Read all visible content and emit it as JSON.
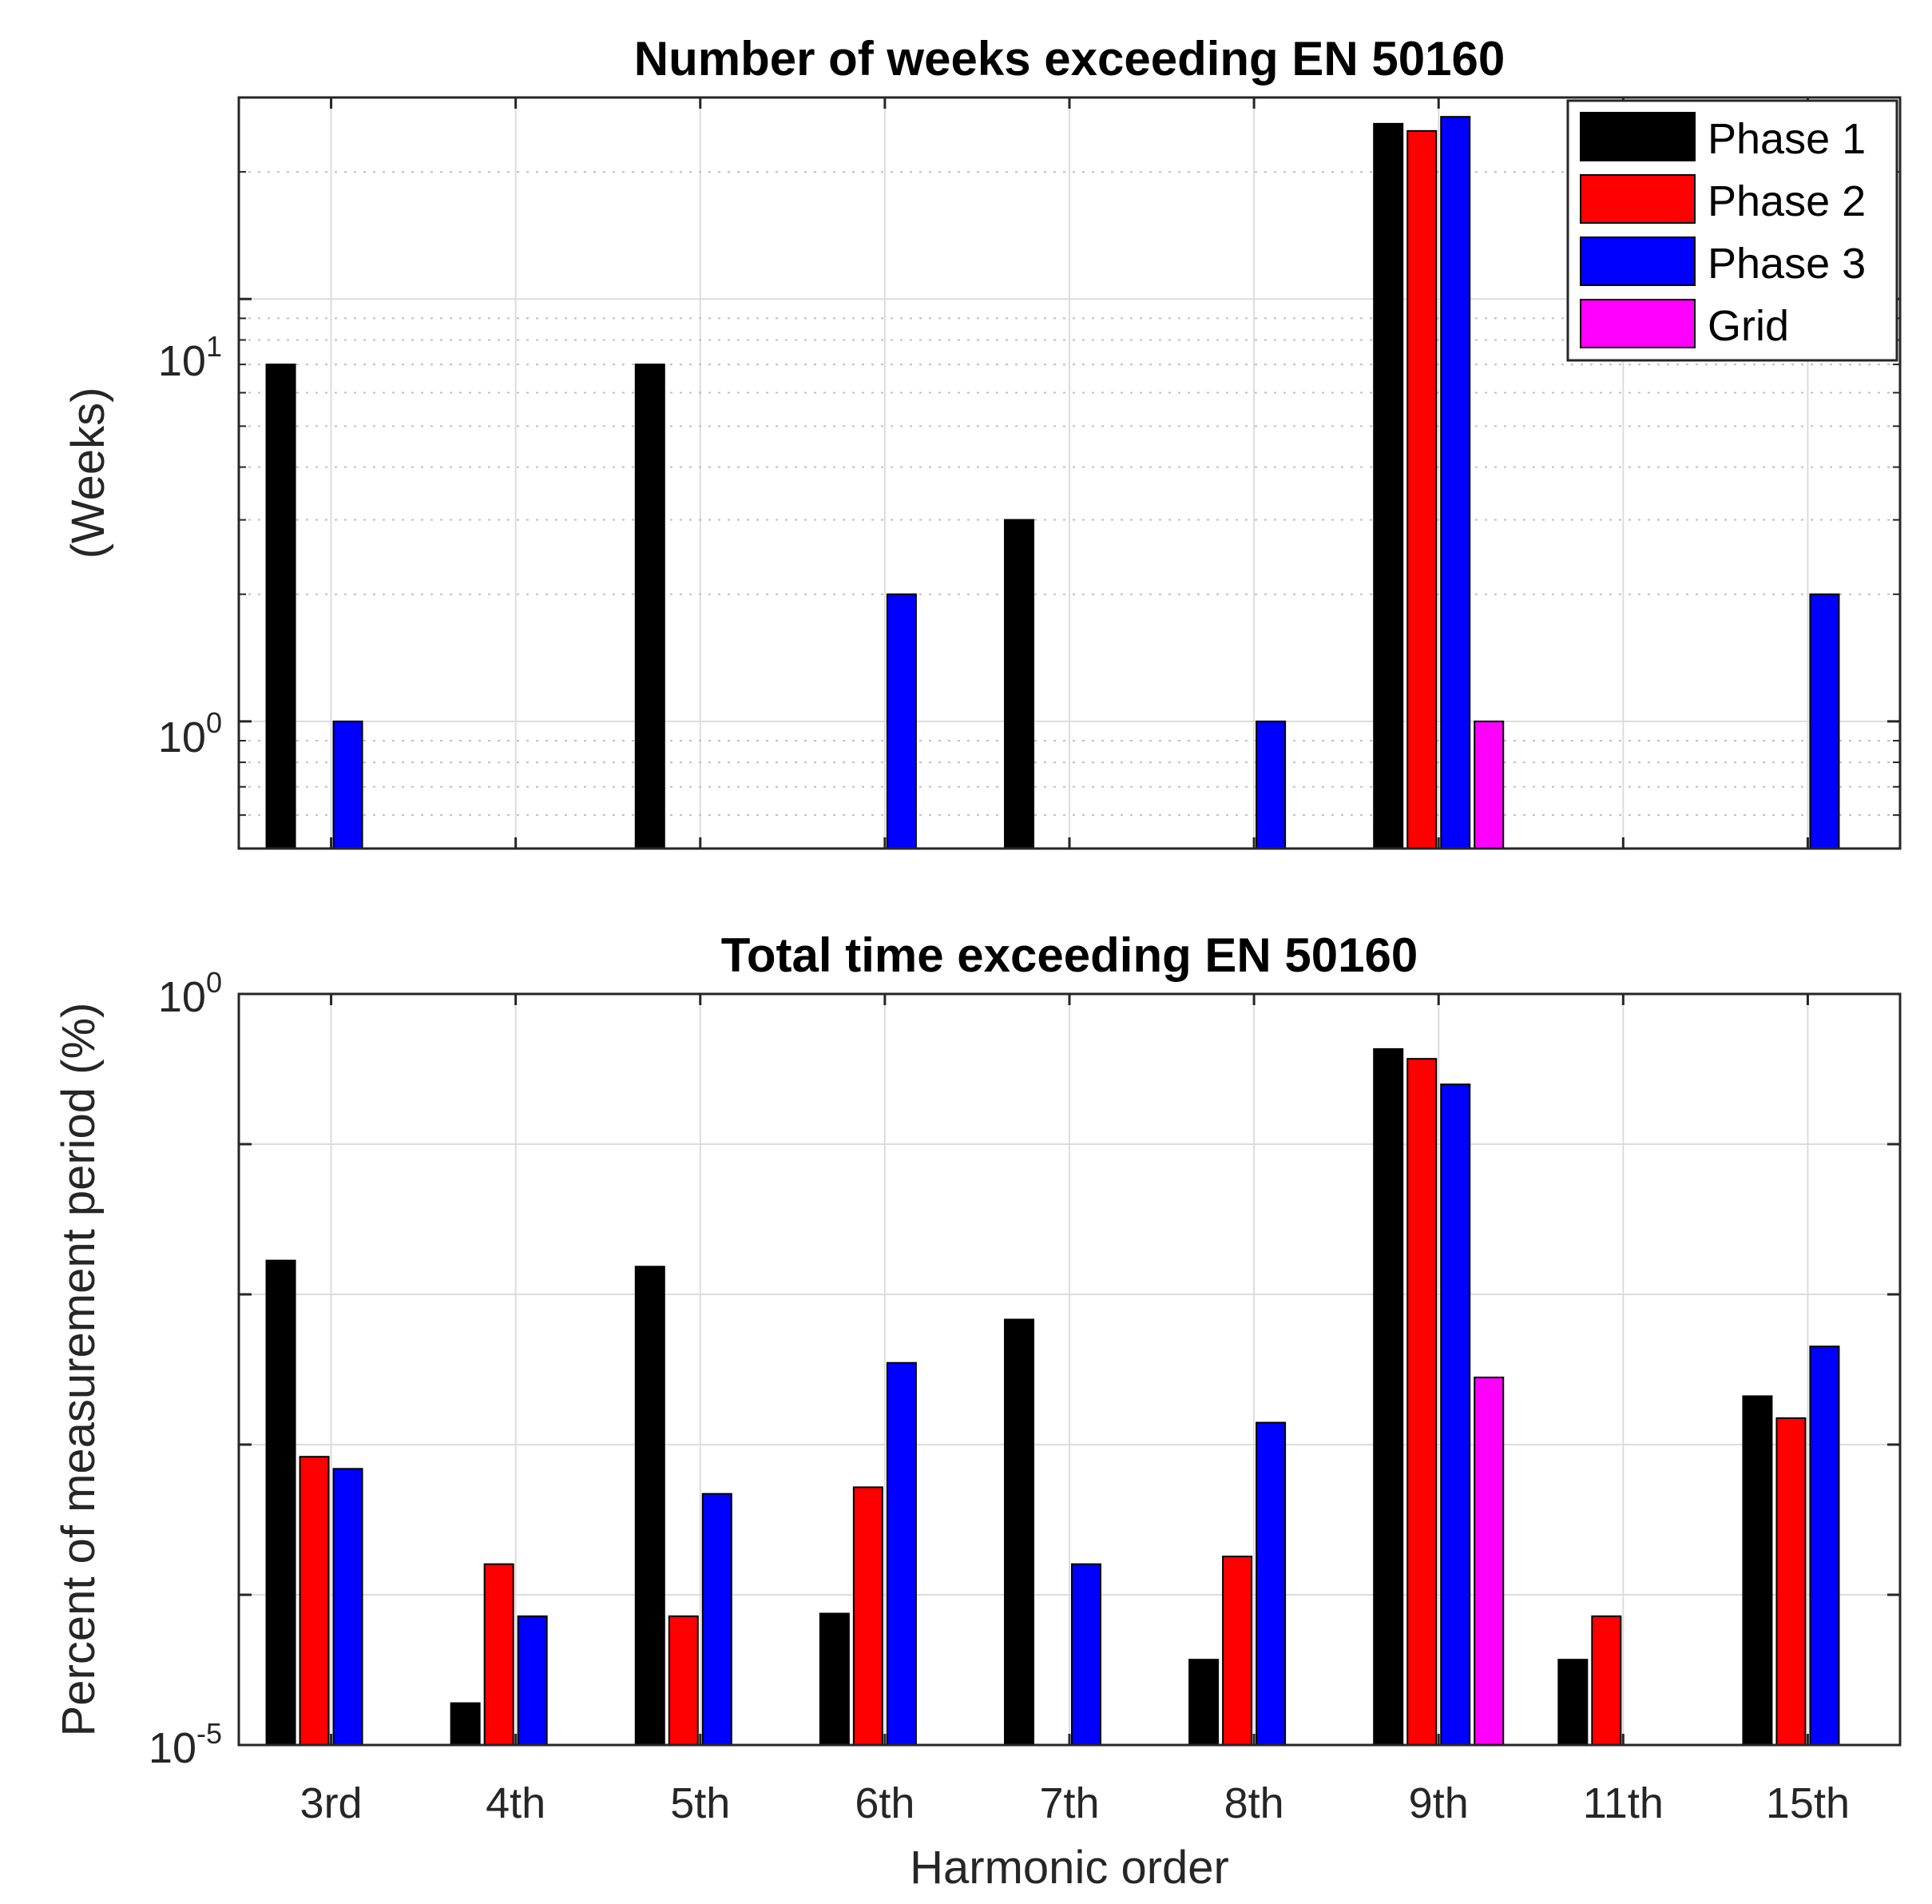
{
  "chart_data": [
    {
      "type": "bar",
      "title": "Number of weeks exceeding EN 50160",
      "xlabel": "",
      "ylabel": "(Weeks)",
      "yscale": "log",
      "ylim": [
        0.5,
        30
      ],
      "yticks": [
        {
          "base": "10",
          "exp": "0"
        },
        {
          "base": "10",
          "exp": "1"
        }
      ],
      "grid": true,
      "categories": [
        "3rd",
        "4th",
        "5th",
        "6th",
        "7th",
        "8th",
        "9th",
        "11th",
        "15th"
      ],
      "series": [
        {
          "name": "Phase 1",
          "color": "#000000",
          "values": [
            7,
            null,
            7,
            null,
            3,
            null,
            26,
            null,
            null
          ]
        },
        {
          "name": "Phase 2",
          "color": "#ff0000",
          "values": [
            null,
            null,
            null,
            null,
            null,
            null,
            25,
            null,
            null
          ]
        },
        {
          "name": "Phase 3",
          "color": "#0000ff",
          "values": [
            1,
            null,
            null,
            2,
            null,
            1,
            27,
            null,
            2
          ]
        },
        {
          "name": "Grid",
          "color": "#ff00ff",
          "values": [
            null,
            null,
            null,
            null,
            null,
            null,
            1,
            null,
            null
          ]
        }
      ],
      "legend": "top-right"
    },
    {
      "type": "bar",
      "title": "Total time exceeding EN 50160",
      "xlabel": "Harmonic order",
      "ylabel": "Percent of measurement period (%)",
      "yscale": "log",
      "ylim": [
        1e-05,
        1
      ],
      "yticks": [
        {
          "base": "10",
          "exp": "-5"
        },
        {
          "base": "10",
          "exp": "0"
        }
      ],
      "grid": true,
      "categories": [
        "3rd",
        "4th",
        "5th",
        "6th",
        "7th",
        "8th",
        "9th",
        "11th",
        "15th"
      ],
      "series": [
        {
          "name": "Phase 1",
          "color": "#000000",
          "values": [
            0.0168,
            1.9e-05,
            0.0153,
            7.5e-05,
            0.0068,
            3.7e-05,
            0.43,
            3.7e-05,
            0.0021
          ]
        },
        {
          "name": "Phase 2",
          "color": "#ff0000",
          "values": [
            0.00083,
            0.00016,
            7.2e-05,
            0.00052,
            null,
            0.00018,
            0.37,
            7.2e-05,
            0.0015
          ]
        },
        {
          "name": "Phase 3",
          "color": "#0000ff",
          "values": [
            0.00069,
            7.2e-05,
            0.00047,
            0.0035,
            0.00016,
            0.0014,
            0.25,
            null,
            0.0045
          ]
        },
        {
          "name": "Grid",
          "color": "#ff00ff",
          "values": [
            null,
            null,
            null,
            null,
            null,
            null,
            0.0028,
            null,
            null
          ]
        }
      ]
    }
  ]
}
